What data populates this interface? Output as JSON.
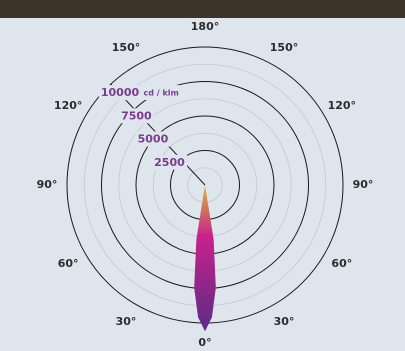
{
  "chart_data": {
    "type": "polar",
    "rlim": [
      0,
      10000
    ],
    "rticks": [
      2500,
      5000,
      7500,
      10000
    ],
    "r_minor_ticks": [
      1250,
      3750,
      6250,
      8750
    ],
    "r_unit": "cd / klm",
    "thetaticks": [
      {
        "value": 0,
        "label": "0°"
      },
      {
        "value": 30,
        "label": "30°"
      },
      {
        "value": 60,
        "label": "60°"
      },
      {
        "value": 90,
        "label": "90°"
      },
      {
        "value": 120,
        "label": "120°"
      },
      {
        "value": 150,
        "label": "150°"
      },
      {
        "value": 180,
        "label": "180°"
      },
      {
        "value": -150,
        "label": "150°"
      },
      {
        "value": -120,
        "label": "120°"
      },
      {
        "value": -90,
        "label": "90°"
      },
      {
        "value": -60,
        "label": "60°"
      },
      {
        "value": -30,
        "label": "30°"
      }
    ],
    "series": [
      {
        "theta": [
          -12,
          -9,
          -6,
          -3,
          0,
          3,
          6,
          9,
          12
        ],
        "r": [
          0,
          4000,
          7500,
          9600,
          10600,
          9600,
          7500,
          4000,
          0
        ],
        "colors": [
          "#d9b83a",
          "#c9218c",
          "#5a2c86"
        ]
      }
    ]
  }
}
